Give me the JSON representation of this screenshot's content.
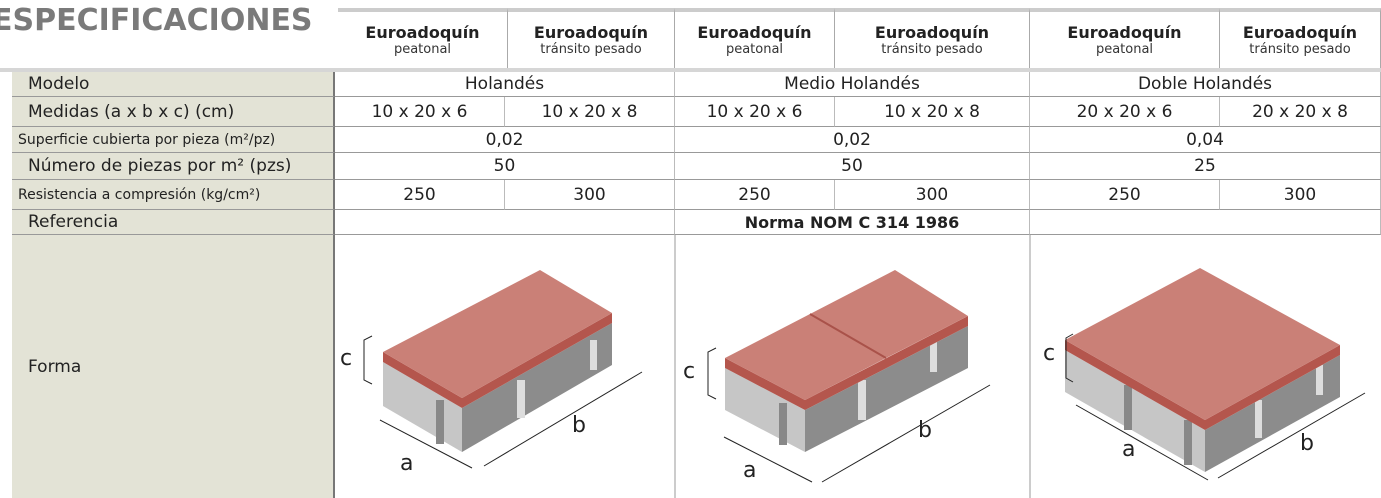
{
  "header": {
    "title": "ESPECIFICACIONES",
    "columns": [
      {
        "name": "Euroadoquín",
        "type": "peatonal"
      },
      {
        "name": "Euroadoquín",
        "type": "tránsito pesado"
      },
      {
        "name": "Euroadoquín",
        "type": "peatonal"
      },
      {
        "name": "Euroadoquín",
        "type": "tránsito pesado"
      },
      {
        "name": "Euroadoquín",
        "type": "peatonal"
      },
      {
        "name": "Euroadoquín",
        "type": "tránsito pesado"
      }
    ]
  },
  "table": {
    "rows": [
      {
        "label": "Modelo",
        "cells": [
          "Holandés",
          "Medio Holandés",
          "Doble Holandés"
        ]
      },
      {
        "label": "Medidas (a x b x c) (cm)",
        "cells": [
          "10 x 20 x 6",
          "10 x 20 x 8",
          "10 x 20 x 6",
          "10 x 20 x 8",
          "20 x 20 x 6",
          "20 x 20 x 8"
        ]
      },
      {
        "label": "Superficie cubierta por pieza (m²/pz)",
        "cells": [
          "0,02",
          "0,02",
          "0,04"
        ]
      },
      {
        "label": "Número de piezas por m² (pzs)",
        "cells": [
          "50",
          "50",
          "25"
        ]
      },
      {
        "label": "Resistencia a compresión (kg/cm²)",
        "cells": [
          "250",
          "300",
          "250",
          "300",
          "250",
          "300"
        ]
      },
      {
        "label": "Referencia",
        "cells": [
          "Norma NOM C 314 1986"
        ]
      }
    ]
  },
  "forma": {
    "label": "Forma",
    "dims": [
      "a",
      "b",
      "c"
    ]
  }
}
